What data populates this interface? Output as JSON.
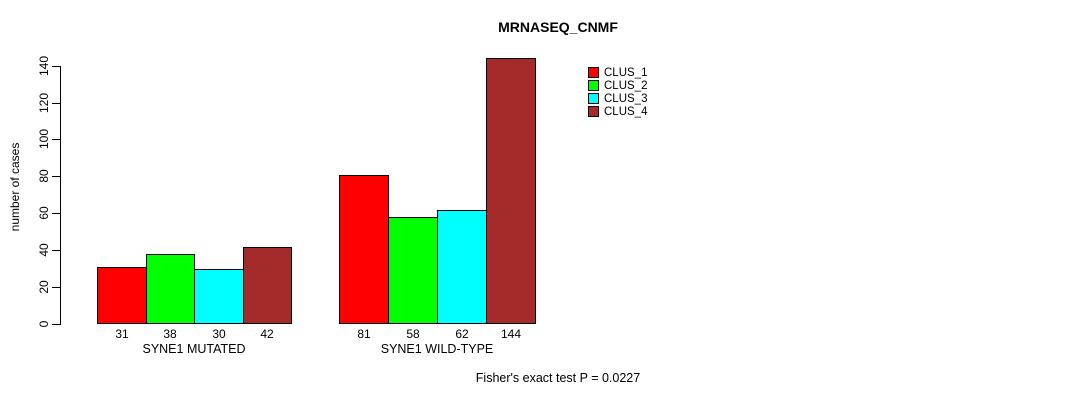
{
  "figure": {
    "background": "#FFFFFF",
    "text_color": "#000000",
    "axis_color": "#000000"
  },
  "chart_data": {
    "type": "bar",
    "title": "MRNASEQ_CNMF",
    "xlabel": "",
    "ylabel": "number of cases",
    "ylim": [
      0,
      140
    ],
    "yticks": [
      0,
      20,
      40,
      60,
      80,
      100,
      120,
      140
    ],
    "grid": false,
    "legend_position": "top-right",
    "categories": [
      "SYNE1 MUTATED",
      "SYNE1 WILD-TYPE"
    ],
    "series": [
      {
        "name": "CLUS_1",
        "color": "#FF0000",
        "values": [
          31,
          81
        ]
      },
      {
        "name": "CLUS_2",
        "color": "#00FF00",
        "values": [
          38,
          58
        ]
      },
      {
        "name": "CLUS_3",
        "color": "#00FFFF",
        "values": [
          30,
          62
        ]
      },
      {
        "name": "CLUS_4",
        "color": "#A52A2A",
        "values": [
          42,
          144
        ]
      }
    ],
    "bar_value_labels": [
      [
        31,
        38,
        30,
        42
      ],
      [
        81,
        58,
        62,
        144
      ]
    ],
    "annotation": "Fisher's exact test P = 0.0227"
  }
}
